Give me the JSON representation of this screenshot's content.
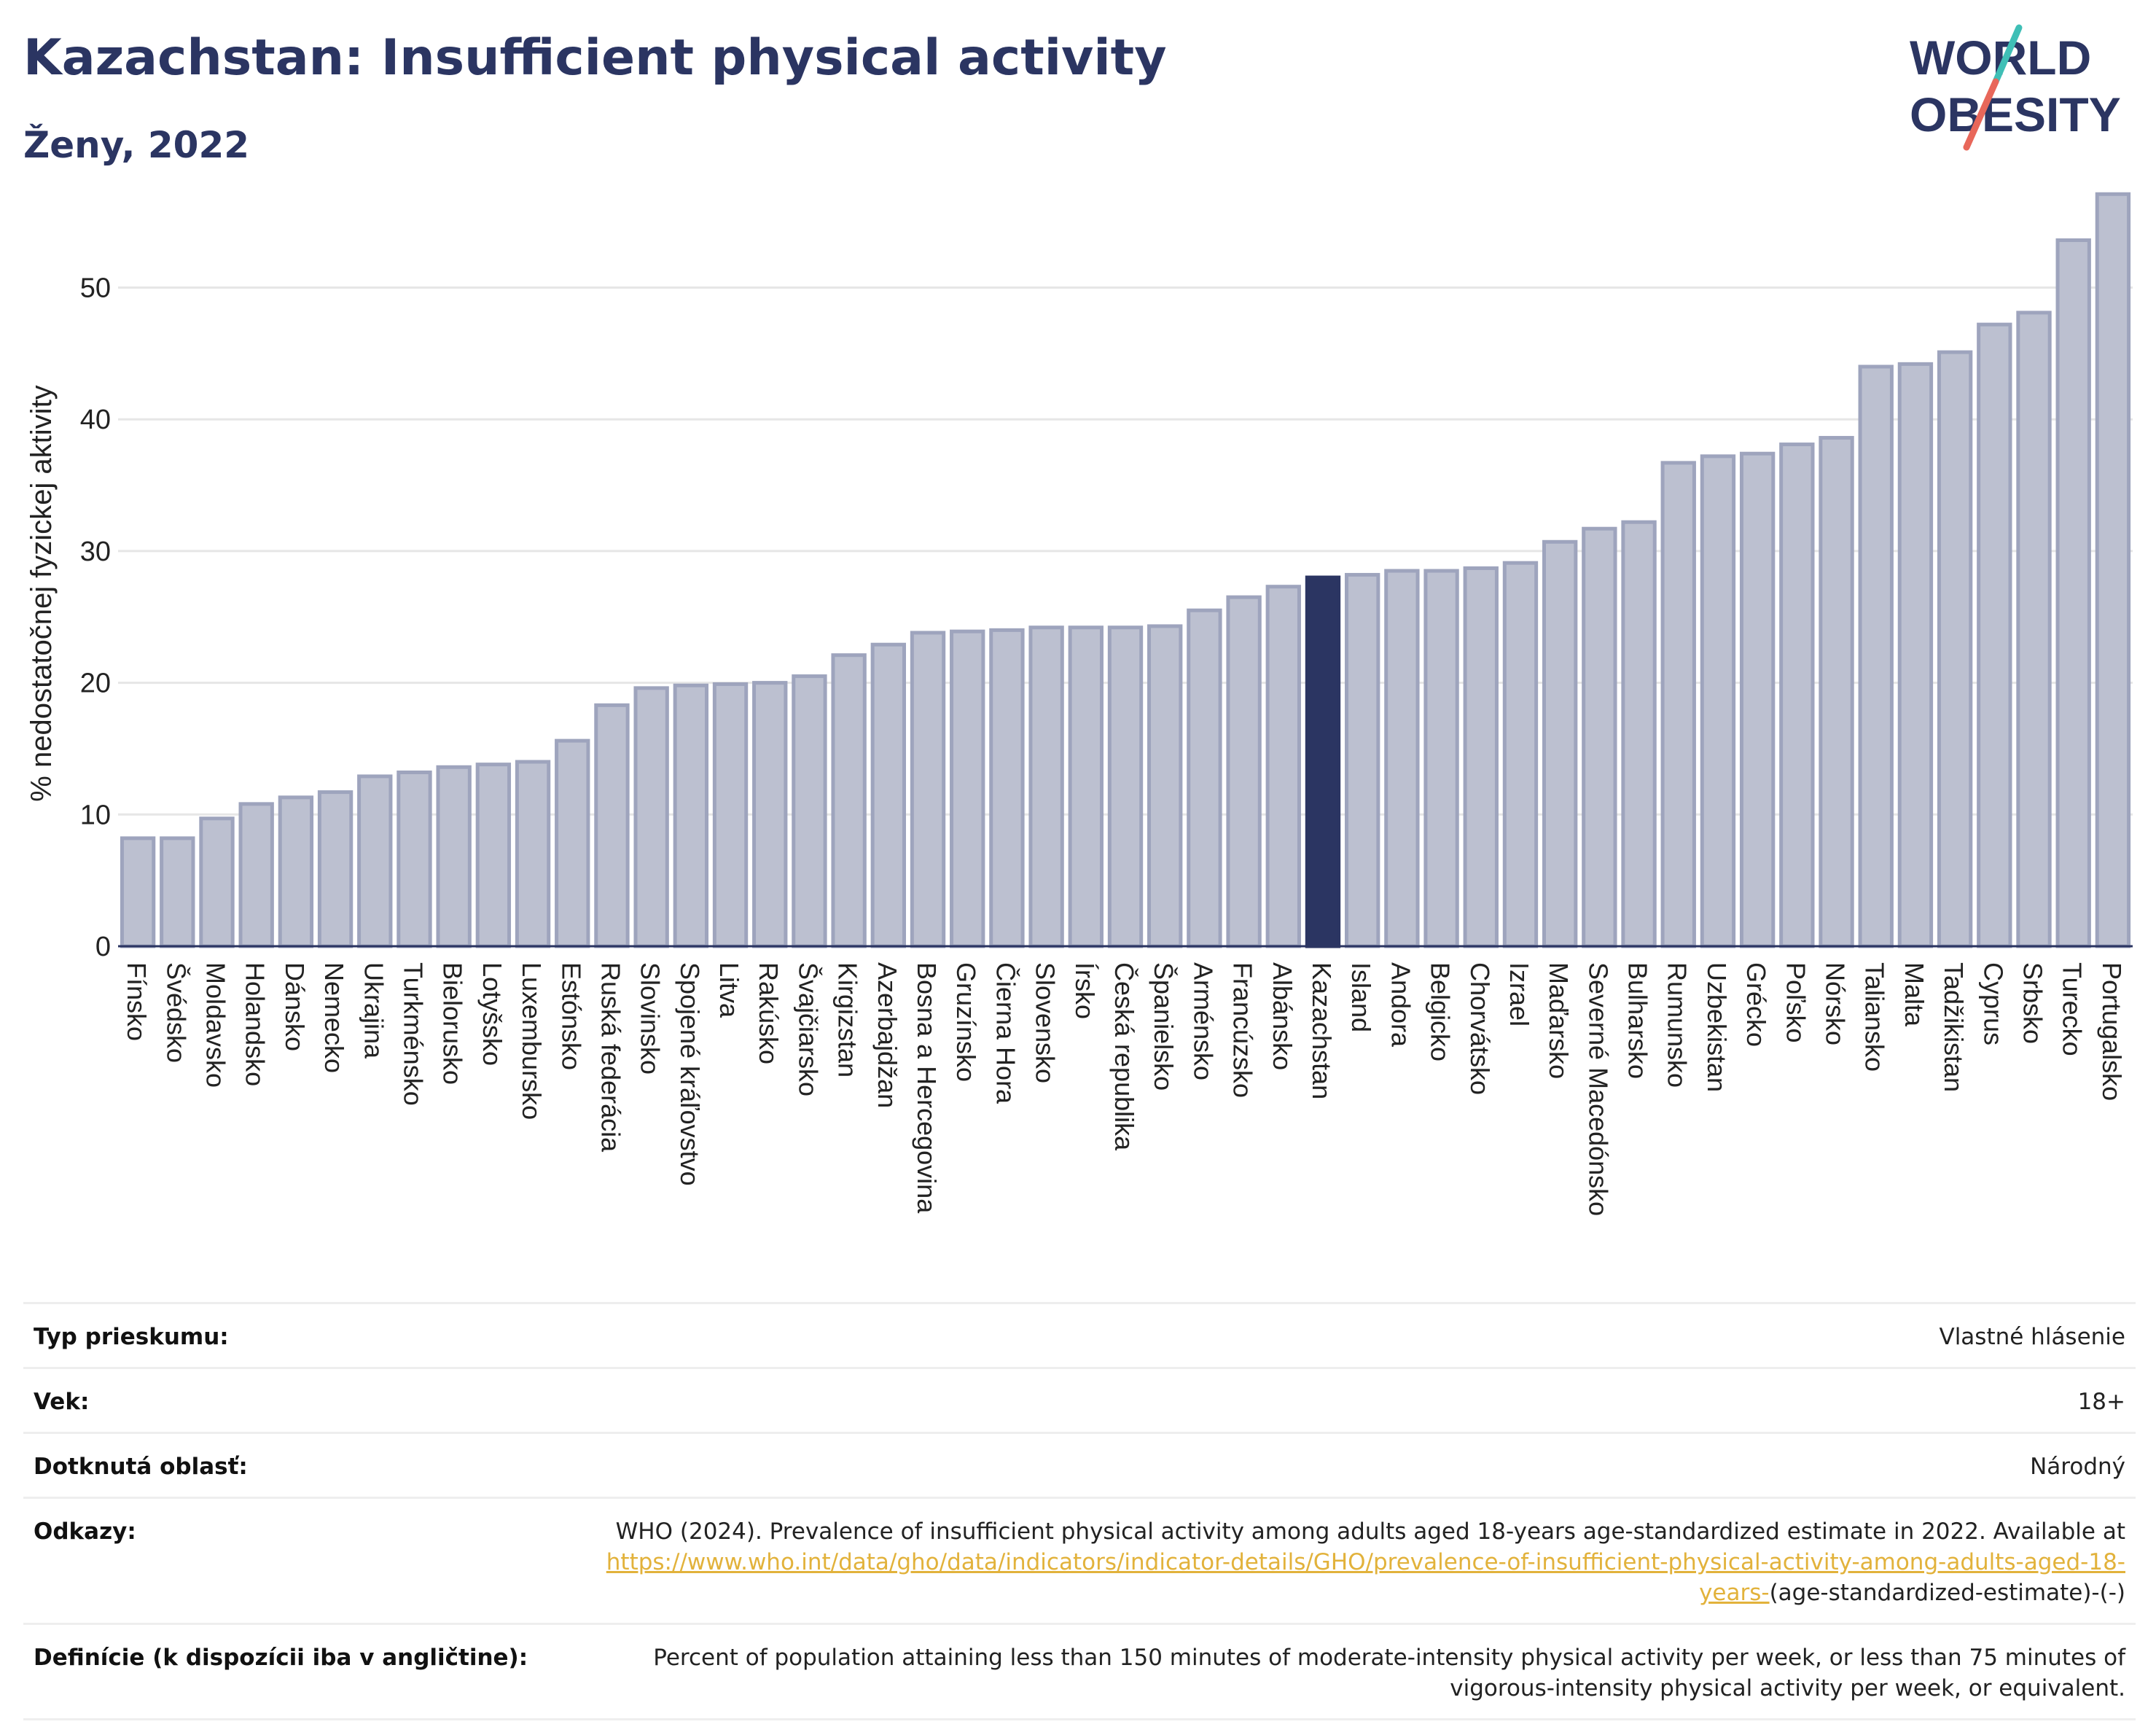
{
  "header": {
    "title": "Kazachstan: Insufficient physical activity",
    "subtitle": "Ženy, 2022"
  },
  "logo": {
    "line1": "WORLD",
    "line2": "OBESITY",
    "colors": {
      "text": "#2b3562",
      "slash_teal": "#3fbfb6",
      "slash_coral": "#e8675a"
    }
  },
  "colors": {
    "bar": "#bcc0d0",
    "bar_outline": "#9ea4bd",
    "highlight": "#2b3562",
    "grid": "#e6e6e6",
    "axis": "#2b3562"
  },
  "chart_data": {
    "type": "bar",
    "title": "Kazachstan: Insufficient physical activity",
    "subtitle": "Ženy, 2022",
    "xlabel": "",
    "ylabel": "% nedostatočnej fyzickej aktivity",
    "ylim": [
      0,
      58
    ],
    "yticks": [
      0,
      10,
      20,
      30,
      40,
      50
    ],
    "grid": true,
    "highlight": "Kazachstan",
    "categories": [
      "Fínsko",
      "Švédsko",
      "Moldavsko",
      "Holandsko",
      "Dánsko",
      "Nemecko",
      "Ukrajina",
      "Turkménsko",
      "Bielorusko",
      "Lotyšsko",
      "Luxembursko",
      "Estónsko",
      "Ruská federácia",
      "Slovinsko",
      "Spojené kráľovstvo",
      "Litva",
      "Rakúsko",
      "Švajčiarsko",
      "Kirgizstan",
      "Azerbajdžan",
      "Bosna a Hercegovina",
      "Gruzínsko",
      "Čierna Hora",
      "Slovensko",
      "Írsko",
      "Česká republika",
      "Španielsko",
      "Arménsko",
      "Francúzsko",
      "Albánsko",
      "Kazachstan",
      "Island",
      "Andora",
      "Belgicko",
      "Chorvátsko",
      "Izrael",
      "Maďarsko",
      "Severné Macedónsko",
      "Bulharsko",
      "Rumunsko",
      "Uzbekistan",
      "Grécko",
      "Poľsko",
      "Nórsko",
      "Taliansko",
      "Malta",
      "Tadžikistan",
      "Cyprus",
      "Srbsko",
      "Turecko",
      "Portugalsko"
    ],
    "values": [
      8.2,
      8.2,
      9.7,
      10.8,
      11.3,
      11.7,
      12.9,
      13.2,
      13.6,
      13.8,
      14.0,
      15.6,
      18.3,
      19.6,
      19.8,
      19.9,
      20.0,
      20.5,
      22.1,
      22.9,
      23.8,
      23.9,
      24.0,
      24.2,
      24.2,
      24.2,
      24.3,
      25.5,
      26.5,
      27.3,
      28.0,
      28.2,
      28.5,
      28.5,
      28.7,
      29.1,
      30.7,
      31.7,
      32.2,
      36.7,
      37.2,
      37.4,
      38.1,
      38.6,
      44.0,
      44.2,
      45.1,
      47.2,
      48.1,
      53.6,
      57.1
    ]
  },
  "info": {
    "survey_type_label": "Typ prieskumu:",
    "survey_type_value": "Vlastné hlásenie",
    "age_label": "Vek:",
    "age_value": "18+",
    "area_label": "Dotknutá oblasť:",
    "area_value": "Národný",
    "references_label": "Odkazy:",
    "references_text": "WHO (2024). Prevalence of insufficient physical activity among adults aged 18-years age-standardized estimate in 2022. Available at",
    "references_link": "https://www.who.int/data/gho/data/indicators/indicator-details/GHO/prevalence-of-insufficient-physical-activity-among-adults-aged-18-years-",
    "references_suffix": "(age-standardized-estimate)-(-)",
    "definitions_label": "Definície (k dispozícii iba v angličtine):",
    "definitions_value": "Percent of population attaining less than 150 minutes of moderate-intensity physical activity per week, or less than 75 minutes of vigorous-intensity physical activity per week, or equivalent."
  }
}
